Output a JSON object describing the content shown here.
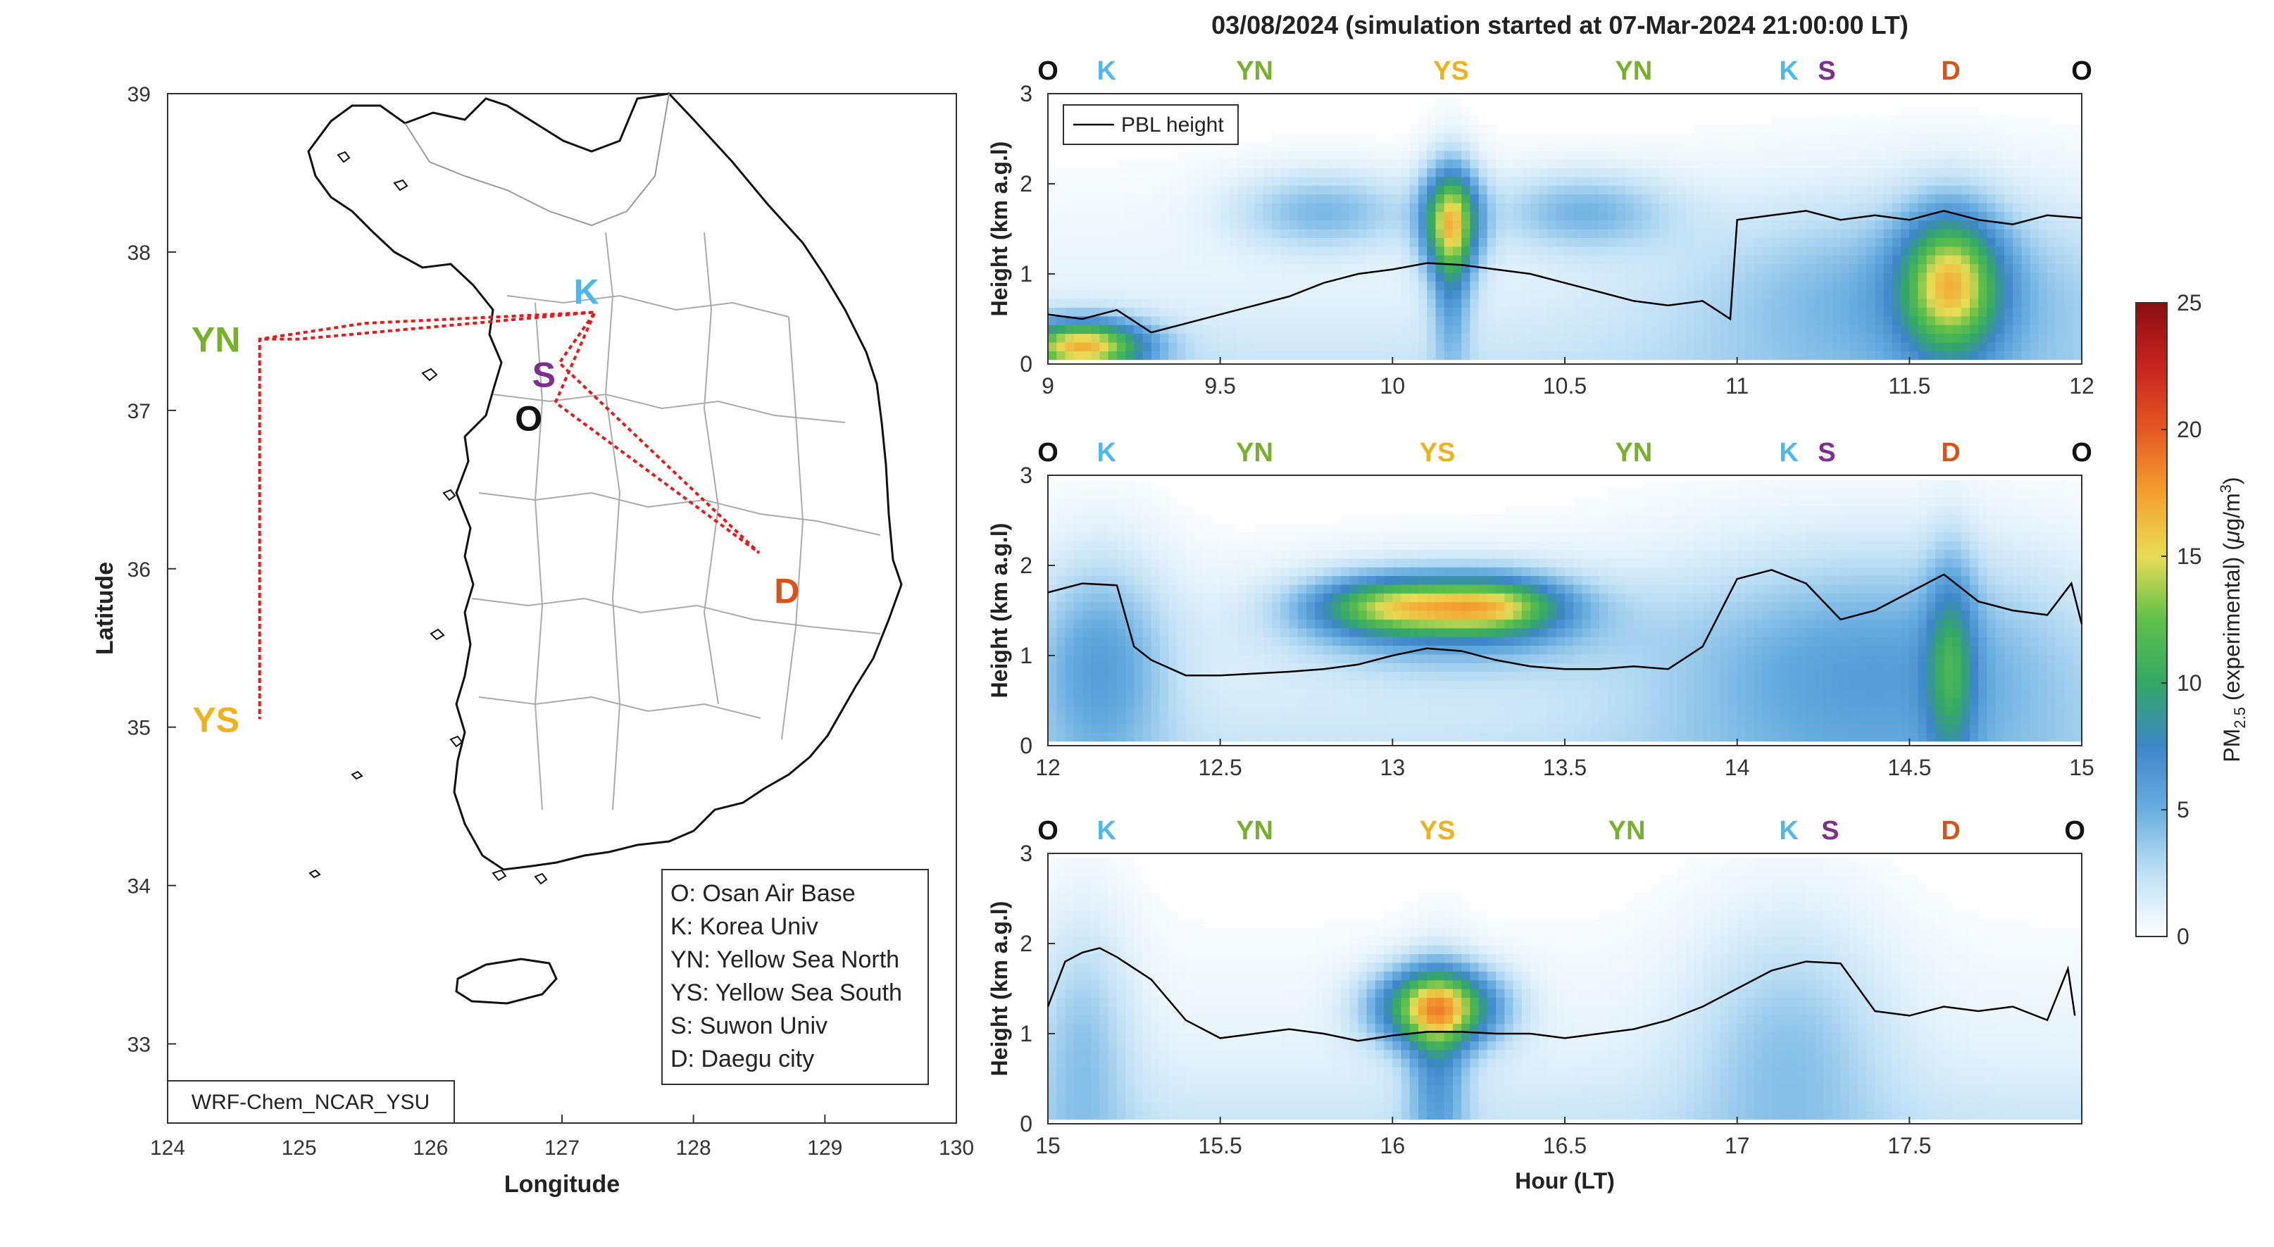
{
  "figure": {
    "title": "03/08/2024 (simulation started at 07-Mar-2024 21:00:00 LT)"
  },
  "colors": {
    "O": "#111111",
    "K": "#4fb8e8",
    "YN": "#77b02a",
    "YS": "#edb21e",
    "S": "#7e2f8e",
    "D": "#d95319",
    "track": "#e21b1b"
  },
  "map": {
    "xlabel": "Longitude",
    "ylabel": "Latitude",
    "xticks": [
      124,
      125,
      126,
      127,
      128,
      129,
      130
    ],
    "yticks": [
      33,
      34,
      35,
      36,
      37,
      38,
      39
    ],
    "xlim": [
      124,
      130
    ],
    "ylim": [
      32.5,
      39
    ],
    "model_label": "WRF-Chem_NCAR_YSU",
    "legend": [
      "O: Osan Air Base",
      "K: Korea Univ",
      "YN: Yellow Sea North",
      "YS: Yellow Sea South",
      "S: Suwon Univ",
      "D: Daegu city"
    ],
    "sites": [
      {
        "code": "K",
        "lon": 127.25,
        "lat": 37.62
      },
      {
        "code": "S",
        "lon": 126.98,
        "lat": 37.3
      },
      {
        "code": "O",
        "lon": 126.95,
        "lat": 37.05
      },
      {
        "code": "YN",
        "lon": 124.7,
        "lat": 37.45
      },
      {
        "code": "YS",
        "lon": 124.7,
        "lat": 35.05
      },
      {
        "code": "D",
        "lon": 128.55,
        "lat": 35.9
      }
    ],
    "track": [
      [
        126.95,
        37.05
      ],
      [
        127.25,
        37.62
      ],
      [
        125.0,
        37.45
      ],
      [
        124.7,
        37.45
      ],
      [
        124.7,
        35.05
      ],
      [
        124.7,
        37.45
      ],
      [
        125.5,
        37.55
      ],
      [
        127.25,
        37.62
      ],
      [
        126.98,
        37.3
      ],
      [
        128.5,
        36.1
      ],
      [
        126.95,
        37.05
      ]
    ]
  },
  "colorbar": {
    "label_main": "PM",
    "label_sub": "2.5",
    "label_rest": " (experimental) (",
    "label_mu": "μ",
    "label_unit": "g/m",
    "label_sup": "3",
    "label_end": ")",
    "ticks": [
      0,
      5,
      10,
      15,
      20,
      25
    ],
    "range": [
      0,
      25
    ]
  },
  "chart_data": [
    {
      "type": "heatmap",
      "xlabel": "",
      "ylabel": "Height (km a.g.l)",
      "xlim": [
        9,
        12
      ],
      "ylim": [
        0,
        3
      ],
      "xticks": [
        "9",
        "9.5",
        "10",
        "10.5",
        "11",
        "11.5",
        "12"
      ],
      "yticks": [
        "0",
        "1",
        "2",
        "3"
      ],
      "legend": "PBL height",
      "site_labels": [
        {
          "code": "O",
          "x": 9.0
        },
        {
          "code": "K",
          "x": 9.17
        },
        {
          "code": "YN",
          "x": 9.6
        },
        {
          "code": "YS",
          "x": 10.17
        },
        {
          "code": "YN",
          "x": 10.7
        },
        {
          "code": "K",
          "x": 11.15
        },
        {
          "code": "S",
          "x": 11.26
        },
        {
          "code": "D",
          "x": 11.62
        },
        {
          "code": "O",
          "x": 12.0
        }
      ],
      "pbl": {
        "x": [
          9.0,
          9.1,
          9.2,
          9.3,
          9.4,
          9.5,
          9.6,
          9.7,
          9.8,
          9.9,
          10.0,
          10.1,
          10.2,
          10.3,
          10.4,
          10.5,
          10.6,
          10.7,
          10.8,
          10.9,
          10.98,
          11.0,
          11.1,
          11.2,
          11.3,
          11.4,
          11.5,
          11.6,
          11.7,
          11.8,
          11.9,
          12.0
        ],
        "y": [
          0.55,
          0.5,
          0.6,
          0.35,
          0.45,
          0.55,
          0.65,
          0.75,
          0.9,
          1.0,
          1.05,
          1.12,
          1.1,
          1.05,
          1.0,
          0.9,
          0.8,
          0.7,
          0.65,
          0.7,
          0.5,
          1.6,
          1.65,
          1.7,
          1.6,
          1.65,
          1.6,
          1.7,
          1.6,
          1.55,
          1.65,
          1.62
        ]
      },
      "blobs": [
        {
          "x": 9.1,
          "y": 0.2,
          "sx": 0.13,
          "sy": 0.2,
          "v": 15
        },
        {
          "x": 10.17,
          "y": 1.6,
          "sx": 0.06,
          "sy": 0.4,
          "v": 12
        },
        {
          "x": 10.17,
          "y": 1.0,
          "sx": 0.04,
          "sy": 0.7,
          "v": 5
        },
        {
          "x": 9.8,
          "y": 1.7,
          "sx": 0.18,
          "sy": 0.3,
          "v": 4
        },
        {
          "x": 10.55,
          "y": 1.7,
          "sx": 0.18,
          "sy": 0.3,
          "v": 4
        },
        {
          "x": 11.62,
          "y": 0.9,
          "sx": 0.1,
          "sy": 0.55,
          "v": 12
        },
        {
          "x": 11.5,
          "y": 0.8,
          "sx": 0.45,
          "sy": 0.75,
          "v": 4
        }
      ]
    },
    {
      "type": "heatmap",
      "xlabel": "",
      "ylabel": "Height (km a.g.l)",
      "xlim": [
        12,
        15
      ],
      "ylim": [
        0,
        3
      ],
      "xticks": [
        "12",
        "12.5",
        "13",
        "13.5",
        "14",
        "14.5",
        "15"
      ],
      "yticks": [
        "0",
        "1",
        "2",
        "3"
      ],
      "site_labels": [
        {
          "code": "O",
          "x": 12.0
        },
        {
          "code": "K",
          "x": 12.17
        },
        {
          "code": "YN",
          "x": 12.6
        },
        {
          "code": "YS",
          "x": 13.13
        },
        {
          "code": "YN",
          "x": 13.7
        },
        {
          "code": "K",
          "x": 14.15
        },
        {
          "code": "S",
          "x": 14.26
        },
        {
          "code": "D",
          "x": 14.62
        },
        {
          "code": "O",
          "x": 15.0
        }
      ],
      "pbl": {
        "x": [
          12.0,
          12.1,
          12.2,
          12.25,
          12.3,
          12.4,
          12.5,
          12.6,
          12.7,
          12.8,
          12.9,
          13.0,
          13.1,
          13.2,
          13.3,
          13.4,
          13.5,
          13.6,
          13.7,
          13.8,
          13.9,
          14.0,
          14.1,
          14.2,
          14.3,
          14.4,
          14.5,
          14.6,
          14.7,
          14.8,
          14.9,
          14.97,
          15.0
        ],
        "y": [
          1.7,
          1.8,
          1.78,
          1.1,
          0.95,
          0.78,
          0.78,
          0.8,
          0.82,
          0.85,
          0.9,
          1.0,
          1.08,
          1.05,
          0.95,
          0.88,
          0.85,
          0.85,
          0.88,
          0.85,
          1.1,
          1.85,
          1.95,
          1.8,
          1.4,
          1.5,
          1.7,
          1.9,
          1.6,
          1.5,
          1.45,
          1.8,
          1.35
        ]
      },
      "blobs": [
        {
          "x": 13.0,
          "y": 1.55,
          "sx": 0.16,
          "sy": 0.22,
          "v": 10
        },
        {
          "x": 13.3,
          "y": 1.55,
          "sx": 0.14,
          "sy": 0.22,
          "v": 10
        },
        {
          "x": 13.15,
          "y": 1.4,
          "sx": 0.32,
          "sy": 0.4,
          "v": 5
        },
        {
          "x": 12.15,
          "y": 0.95,
          "sx": 0.14,
          "sy": 0.8,
          "v": 5
        },
        {
          "x": 14.4,
          "y": 0.9,
          "sx": 0.45,
          "sy": 0.9,
          "v": 5
        },
        {
          "x": 14.62,
          "y": 0.9,
          "sx": 0.05,
          "sy": 0.8,
          "v": 6
        }
      ]
    },
    {
      "type": "heatmap",
      "xlabel": "Hour (LT)",
      "ylabel": "Height (km a.g.l)",
      "xlim": [
        15,
        18
      ],
      "ylim": [
        0,
        3
      ],
      "xticks": [
        "15",
        "15.5",
        "16",
        "16.5",
        "17",
        "17.5"
      ],
      "yticks": [
        "0",
        "1",
        "2",
        "3"
      ],
      "site_labels": [
        {
          "code": "O",
          "x": 15.0
        },
        {
          "code": "K",
          "x": 15.17
        },
        {
          "code": "YN",
          "x": 15.6
        },
        {
          "code": "YS",
          "x": 16.13
        },
        {
          "code": "YN",
          "x": 16.68
        },
        {
          "code": "K",
          "x": 17.15
        },
        {
          "code": "S",
          "x": 17.27
        },
        {
          "code": "D",
          "x": 17.62
        },
        {
          "code": "O",
          "x": 17.98
        }
      ],
      "pbl": {
        "x": [
          15.0,
          15.05,
          15.1,
          15.15,
          15.2,
          15.3,
          15.4,
          15.5,
          15.6,
          15.7,
          15.8,
          15.9,
          16.0,
          16.1,
          16.2,
          16.3,
          16.4,
          16.5,
          16.6,
          16.7,
          16.8,
          16.9,
          17.0,
          17.1,
          17.2,
          17.3,
          17.4,
          17.5,
          17.6,
          17.7,
          17.8,
          17.9,
          17.96,
          17.98
        ],
        "y": [
          1.3,
          1.8,
          1.9,
          1.95,
          1.85,
          1.6,
          1.15,
          0.95,
          1.0,
          1.05,
          1.0,
          0.92,
          0.98,
          1.02,
          1.02,
          1.0,
          1.0,
          0.95,
          1.0,
          1.05,
          1.15,
          1.3,
          1.5,
          1.7,
          1.8,
          1.78,
          1.25,
          1.2,
          1.3,
          1.25,
          1.3,
          1.15,
          1.72,
          1.2
        ]
      },
      "blobs": [
        {
          "x": 16.13,
          "y": 1.3,
          "sx": 0.12,
          "sy": 0.3,
          "v": 15
        },
        {
          "x": 16.13,
          "y": 0.6,
          "sx": 0.06,
          "sy": 0.7,
          "v": 5
        },
        {
          "x": 15.1,
          "y": 0.9,
          "sx": 0.1,
          "sy": 1.0,
          "v": 3
        },
        {
          "x": 17.15,
          "y": 0.9,
          "sx": 0.2,
          "sy": 1.0,
          "v": 3
        }
      ]
    }
  ]
}
